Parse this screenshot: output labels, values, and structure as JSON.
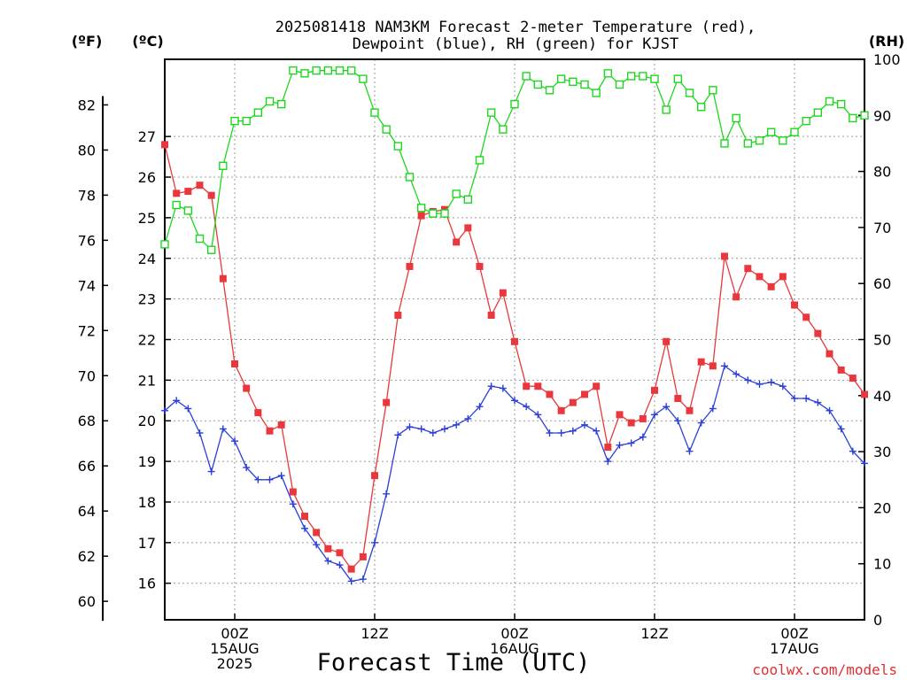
{
  "chart_data": {
    "type": "line",
    "title_lines": [
      "2025081418 NAM3KM Forecast 2-meter Temperature (red),",
      "Dewpoint (blue), RH (green) for KJST"
    ],
    "xlabel": "Forecast Time (UTC)",
    "credit": "coolwx.com/models",
    "units": {
      "fahrenheit": "(ºF)",
      "celsius": "(ºC)",
      "rh": "(RH)"
    },
    "x_unit": "forecast hour from 2025-08-14 18Z",
    "xlim": [
      0,
      60
    ],
    "x_ticks": [
      {
        "x": 6,
        "lines": [
          "00Z",
          "15AUG",
          "2025"
        ]
      },
      {
        "x": 18,
        "lines": [
          "12Z"
        ]
      },
      {
        "x": 30,
        "lines": [
          "00Z",
          "16AUG"
        ]
      },
      {
        "x": 42,
        "lines": [
          "12Z"
        ]
      },
      {
        "x": 54,
        "lines": [
          "00Z",
          "17AUG"
        ]
      }
    ],
    "left_axis_c": {
      "ylim": [
        15.1,
        28.9
      ],
      "ticks": [
        "16",
        "17",
        "18",
        "19",
        "20",
        "21",
        "22",
        "23",
        "24",
        "25",
        "26",
        "27"
      ]
    },
    "left_axis_f": {
      "ticks": [
        "60",
        "62",
        "64",
        "66",
        "68",
        "70",
        "72",
        "74",
        "76",
        "78",
        "80",
        "82"
      ]
    },
    "right_axis_rh": {
      "ylim": [
        0,
        100
      ],
      "ticks": [
        "0",
        "10",
        "20",
        "30",
        "40",
        "50",
        "60",
        "70",
        "80",
        "90",
        "100"
      ]
    },
    "grid": true,
    "series": [
      {
        "name": "2-meter Temperature",
        "color": "#e8383d",
        "marker": "filled-square",
        "axis": "celsius",
        "values": [
          26.8,
          25.6,
          25.65,
          25.8,
          25.55,
          23.5,
          21.4,
          20.8,
          20.2,
          19.75,
          19.9,
          18.25,
          17.65,
          17.25,
          16.85,
          16.75,
          16.35,
          16.65,
          18.65,
          20.45,
          22.6,
          23.8,
          25.05,
          25.15,
          25.2,
          24.4,
          24.75,
          23.8,
          22.6,
          23.15,
          21.95,
          20.85,
          20.85,
          20.65,
          20.25,
          20.45,
          20.65,
          20.85,
          19.35,
          20.15,
          19.95,
          20.05,
          20.75,
          21.95,
          20.55,
          20.25,
          21.45,
          21.35,
          24.05,
          23.05,
          23.75,
          23.55,
          23.3,
          23.55,
          22.85,
          22.55,
          22.15,
          21.65,
          21.25,
          21.05,
          20.65
        ]
      },
      {
        "name": "Dewpoint",
        "color": "#2b3fd8",
        "marker": "plus",
        "axis": "celsius",
        "values": [
          20.25,
          20.5,
          20.3,
          19.7,
          18.75,
          19.8,
          19.5,
          18.85,
          18.55,
          18.55,
          18.65,
          17.95,
          17.35,
          16.95,
          16.55,
          16.45,
          16.05,
          16.1,
          17.0,
          18.2,
          19.65,
          19.85,
          19.8,
          19.7,
          19.8,
          19.9,
          20.05,
          20.35,
          20.85,
          20.8,
          20.5,
          20.35,
          20.15,
          19.7,
          19.7,
          19.75,
          19.9,
          19.75,
          19.0,
          19.4,
          19.45,
          19.6,
          20.15,
          20.35,
          20.0,
          19.25,
          19.95,
          20.3,
          21.35,
          21.15,
          21.0,
          20.9,
          20.95,
          20.85,
          20.55,
          20.55,
          20.45,
          20.25,
          19.8,
          19.25,
          18.95
        ]
      },
      {
        "name": "RH",
        "color": "#1fd61f",
        "marker": "open-square",
        "axis": "rh",
        "values": [
          67,
          74,
          73,
          68,
          66,
          81,
          89,
          89,
          90.5,
          92.5,
          92,
          98,
          97.5,
          98,
          98,
          98,
          98,
          96.5,
          90.5,
          87.5,
          84.5,
          79,
          73.5,
          72.5,
          72.5,
          76,
          75,
          82,
          90.5,
          87.5,
          92,
          97,
          95.5,
          94.5,
          96.5,
          96,
          95.5,
          94,
          97.5,
          95.5,
          97,
          97,
          96.5,
          91,
          96.5,
          94,
          91.5,
          94.5,
          85,
          89.5,
          85,
          85.5,
          87,
          85.5,
          87,
          89,
          90.5,
          92.5,
          92,
          89.5,
          90
        ]
      }
    ]
  }
}
